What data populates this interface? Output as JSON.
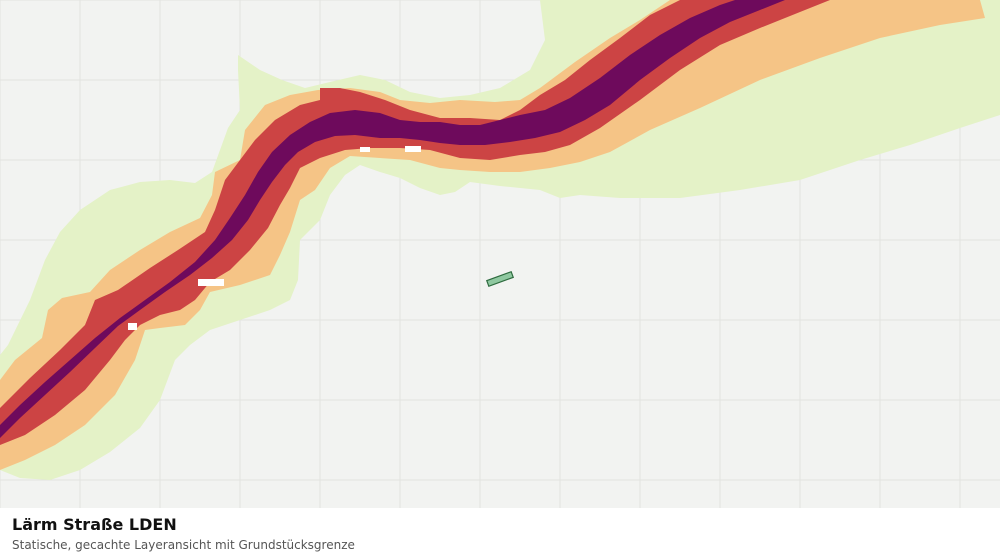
{
  "layer": {
    "title": "Lärm Straße LDEN",
    "subtitle": "Statische, gecachte Layeransicht mit Grundstücksgrenze"
  },
  "colors": {
    "background": "#f2f3f1",
    "grid": "#e2e3e0",
    "noise_zone_1": "#e4f2c7",
    "noise_zone_2": "#f5c486",
    "noise_zone_3": "#cc4444",
    "noise_zone_4": "#6e0a5c",
    "parcel_fill": "#8fc8a0",
    "parcel_stroke": "#2e6b3f"
  },
  "map": {
    "grid_visible": true,
    "parcel_outline": "Grundstücksgrenze"
  }
}
